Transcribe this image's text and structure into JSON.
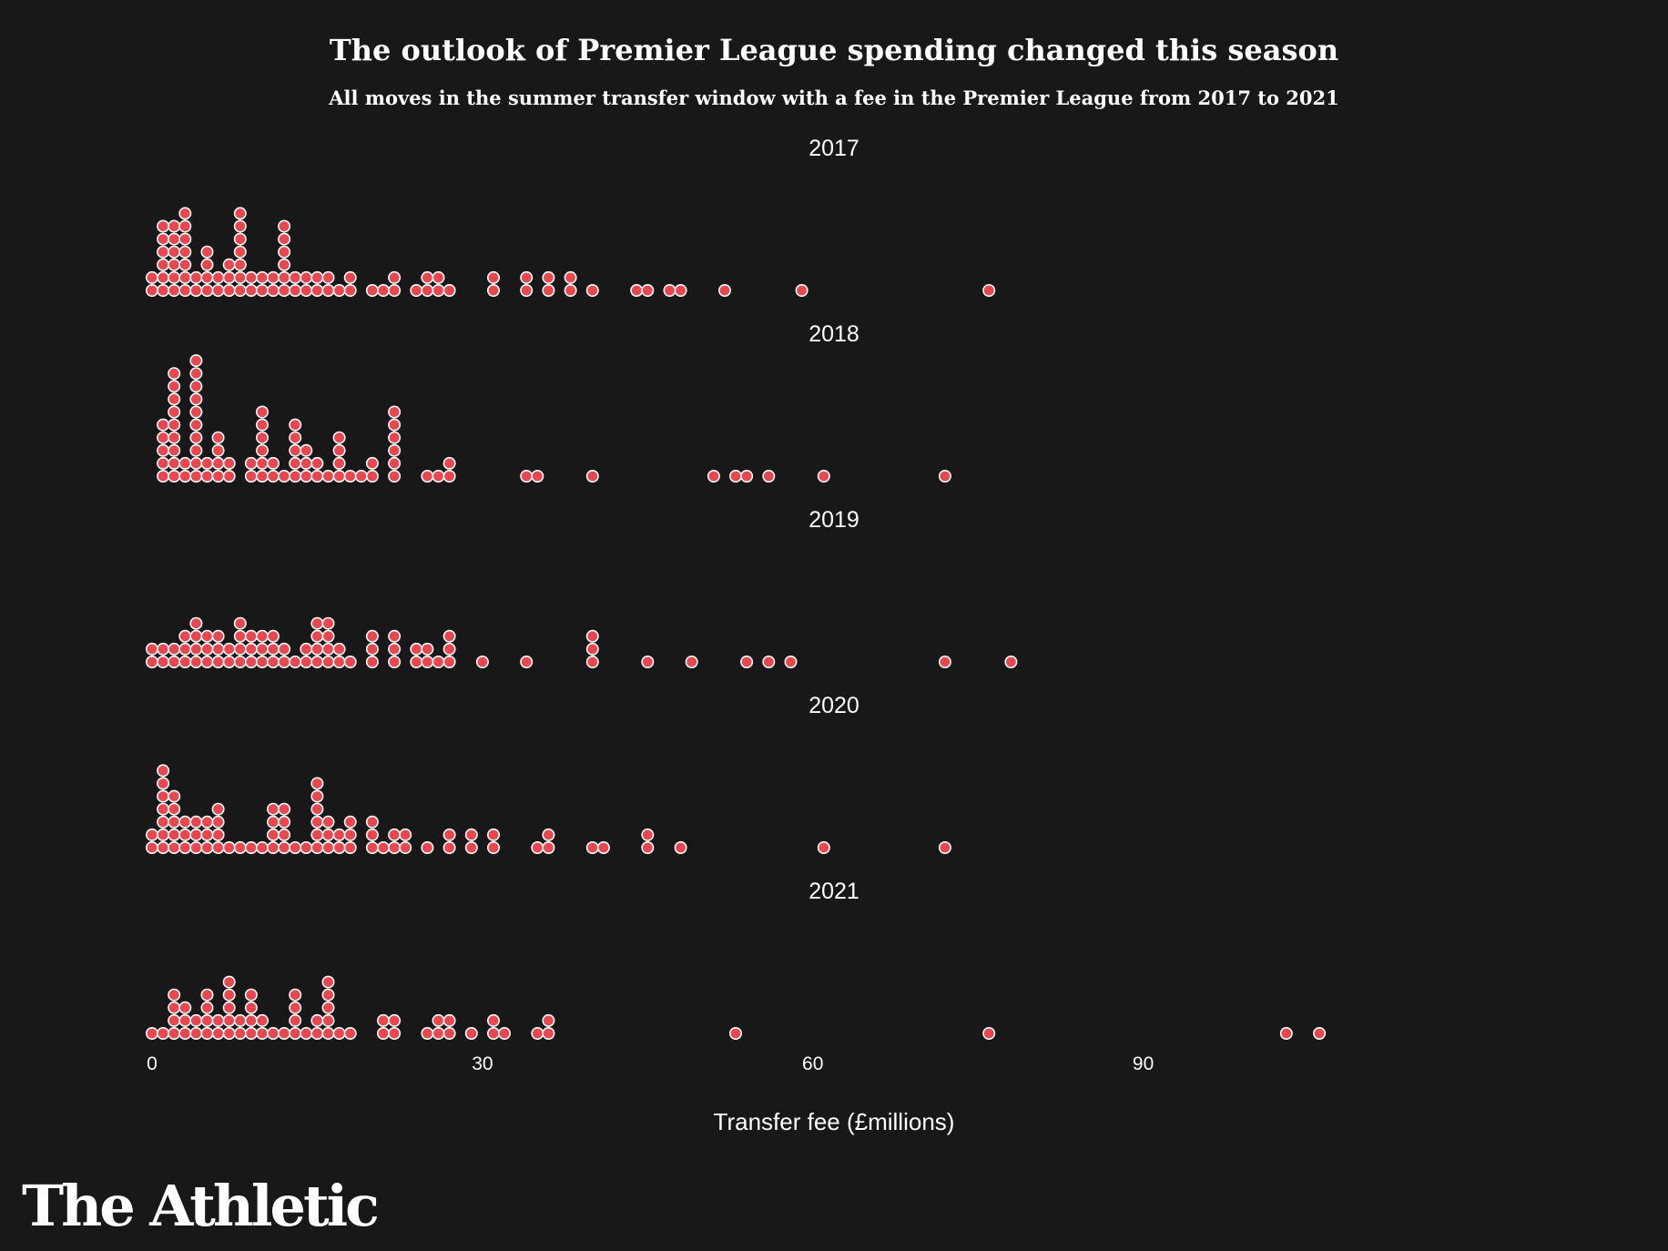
{
  "branding": {
    "logo_text": "The Athletic"
  },
  "chart_data": {
    "type": "scatter",
    "title": "The outlook of Premier League spending changed this season",
    "subtitle": "All moves in the summer transfer window with a fee in the Premier League from 2017 to 2021",
    "xlabel": "Transfer fee (£millions)",
    "x_ticks": [
      0,
      30,
      60,
      90
    ],
    "xlim": [
      0,
      110
    ],
    "dot_color": "#e8474f",
    "dot_stroke": "#ffffff",
    "series": [
      {
        "name": "2017",
        "values": [
          0,
          0,
          1,
          1,
          1,
          1,
          1,
          1,
          2,
          2,
          2,
          2,
          2,
          2,
          3,
          3,
          3,
          3,
          3,
          3,
          3,
          4,
          4,
          5,
          5,
          5,
          5,
          6,
          6,
          7,
          7,
          7,
          8,
          8,
          8,
          8,
          8,
          8,
          8,
          9,
          9,
          10,
          10,
          11,
          11,
          12,
          12,
          12,
          12,
          12,
          12,
          13,
          13,
          14,
          14,
          15,
          15,
          16,
          16,
          17,
          18,
          18,
          20,
          21,
          22,
          22,
          24,
          25,
          25,
          26,
          26,
          27,
          31,
          31,
          34,
          34,
          36,
          36,
          38,
          38,
          40,
          44,
          45,
          47,
          48,
          52,
          59,
          76
        ]
      },
      {
        "name": "2018",
        "values": [
          1,
          1,
          1,
          1,
          1,
          2,
          2,
          2,
          2,
          2,
          2,
          2,
          2,
          2,
          3,
          3,
          4,
          4,
          4,
          4,
          4,
          4,
          4,
          4,
          4,
          4,
          5,
          5,
          6,
          6,
          6,
          6,
          7,
          7,
          9,
          9,
          10,
          10,
          10,
          10,
          10,
          10,
          11,
          11,
          12,
          13,
          13,
          13,
          13,
          13,
          14,
          14,
          14,
          15,
          15,
          16,
          17,
          17,
          17,
          17,
          18,
          19,
          20,
          20,
          22,
          22,
          22,
          22,
          22,
          22,
          25,
          26,
          27,
          27,
          34,
          35,
          40,
          51,
          53,
          54,
          56,
          61,
          72
        ]
      },
      {
        "name": "2019",
        "values": [
          0,
          0,
          1,
          1,
          2,
          2,
          3,
          3,
          3,
          4,
          4,
          4,
          4,
          5,
          5,
          5,
          6,
          6,
          6,
          7,
          7,
          8,
          8,
          8,
          8,
          9,
          9,
          9,
          10,
          10,
          10,
          11,
          11,
          11,
          12,
          12,
          13,
          14,
          14,
          15,
          15,
          15,
          15,
          16,
          16,
          16,
          16,
          17,
          17,
          18,
          20,
          20,
          20,
          22,
          22,
          22,
          24,
          24,
          25,
          25,
          26,
          27,
          27,
          27,
          30,
          34,
          40,
          40,
          40,
          45,
          49,
          54,
          56,
          58,
          72,
          78
        ]
      },
      {
        "name": "2020",
        "values": [
          0,
          0,
          1,
          1,
          1,
          1,
          1,
          1,
          1,
          2,
          2,
          2,
          2,
          2,
          3,
          3,
          3,
          4,
          4,
          4,
          5,
          5,
          5,
          6,
          6,
          6,
          6,
          7,
          8,
          9,
          10,
          11,
          11,
          11,
          11,
          12,
          12,
          12,
          12,
          13,
          14,
          15,
          15,
          15,
          15,
          15,
          15,
          16,
          16,
          16,
          17,
          17,
          18,
          18,
          18,
          20,
          20,
          20,
          21,
          22,
          22,
          23,
          23,
          25,
          27,
          27,
          29,
          29,
          31,
          31,
          35,
          36,
          36,
          40,
          41,
          45,
          45,
          48,
          61,
          72
        ]
      },
      {
        "name": "2021",
        "values": [
          0,
          1,
          2,
          2,
          2,
          2,
          3,
          3,
          3,
          4,
          4,
          5,
          5,
          5,
          5,
          6,
          6,
          7,
          7,
          7,
          7,
          7,
          8,
          8,
          9,
          9,
          9,
          9,
          10,
          10,
          11,
          12,
          13,
          13,
          13,
          13,
          14,
          15,
          15,
          16,
          16,
          16,
          16,
          16,
          17,
          18,
          21,
          21,
          22,
          22,
          25,
          26,
          26,
          27,
          27,
          29,
          31,
          31,
          32,
          35,
          36,
          36,
          53,
          76,
          103,
          106
        ]
      }
    ]
  }
}
